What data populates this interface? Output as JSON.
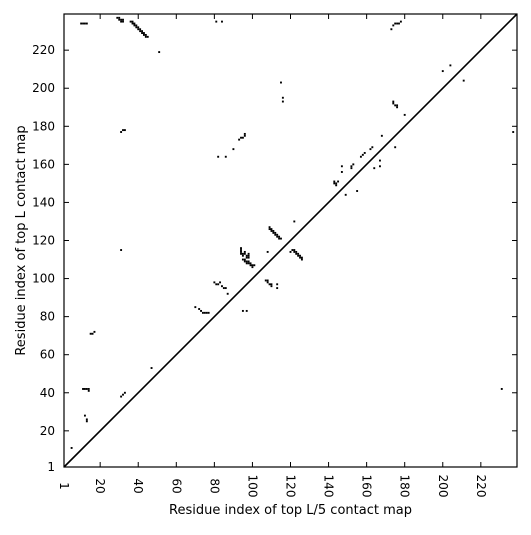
{
  "chart_data": {
    "type": "scatter",
    "title": "",
    "xlabel": "Residue index of top L/5 contact map",
    "ylabel": "Residue index of top L contact map",
    "xlim": [
      1,
      239
    ],
    "ylim": [
      1,
      239
    ],
    "grid": false,
    "diagonal": true,
    "x_ticks": [
      {
        "value": 1,
        "label": "1"
      },
      {
        "value": 20,
        "label": "20"
      },
      {
        "value": 40,
        "label": "40"
      },
      {
        "value": 60,
        "label": "60"
      },
      {
        "value": 80,
        "label": "80"
      },
      {
        "value": 100,
        "label": "100"
      },
      {
        "value": 120,
        "label": "120"
      },
      {
        "value": 140,
        "label": "140"
      },
      {
        "value": 160,
        "label": "160"
      },
      {
        "value": 180,
        "label": "180"
      },
      {
        "value": 200,
        "label": "200"
      },
      {
        "value": 220,
        "label": "220"
      }
    ],
    "y_ticks": [
      {
        "value": 1,
        "label": "1"
      },
      {
        "value": 20,
        "label": "20"
      },
      {
        "value": 40,
        "label": "40"
      },
      {
        "value": 60,
        "label": "60"
      },
      {
        "value": 80,
        "label": "80"
      },
      {
        "value": 100,
        "label": "100"
      },
      {
        "value": 120,
        "label": "120"
      },
      {
        "value": 140,
        "label": "140"
      },
      {
        "value": 160,
        "label": "160"
      },
      {
        "value": 180,
        "label": "180"
      },
      {
        "value": 200,
        "label": "200"
      },
      {
        "value": 220,
        "label": "220"
      }
    ],
    "series": [
      {
        "color": "#000000",
        "points": [
          [
            10,
            234
          ],
          [
            11,
            234
          ],
          [
            12,
            234
          ],
          [
            13,
            234
          ],
          [
            29,
            237
          ],
          [
            30,
            237
          ],
          [
            30,
            236
          ],
          [
            31,
            236
          ],
          [
            31,
            235
          ],
          [
            32,
            235
          ],
          [
            32,
            236
          ],
          [
            36,
            235
          ],
          [
            37,
            235
          ],
          [
            37,
            234
          ],
          [
            38,
            234
          ],
          [
            38,
            233
          ],
          [
            39,
            233
          ],
          [
            39,
            232
          ],
          [
            40,
            232
          ],
          [
            40,
            231
          ],
          [
            41,
            231
          ],
          [
            41,
            230
          ],
          [
            42,
            230
          ],
          [
            42,
            229
          ],
          [
            43,
            229
          ],
          [
            43,
            228
          ],
          [
            44,
            228
          ],
          [
            44,
            227
          ],
          [
            45,
            227
          ],
          [
            51,
            219
          ],
          [
            81,
            235
          ],
          [
            84,
            235
          ],
          [
            31,
            177
          ],
          [
            32,
            178
          ],
          [
            33,
            178
          ],
          [
            31,
            115
          ],
          [
            11,
            42
          ],
          [
            12,
            42
          ],
          [
            13,
            42
          ],
          [
            14,
            42
          ],
          [
            14,
            41
          ],
          [
            12,
            28
          ],
          [
            13,
            26
          ],
          [
            13,
            25
          ],
          [
            15,
            71
          ],
          [
            16,
            71
          ],
          [
            17,
            72
          ],
          [
            31,
            38
          ],
          [
            32,
            39
          ],
          [
            33,
            40
          ],
          [
            47,
            53
          ],
          [
            5,
            11
          ],
          [
            70,
            85
          ],
          [
            72,
            84
          ],
          [
            73,
            83
          ],
          [
            74,
            82
          ],
          [
            75,
            82
          ],
          [
            76,
            82
          ],
          [
            77,
            82
          ],
          [
            80,
            98
          ],
          [
            81,
            97
          ],
          [
            82,
            97
          ],
          [
            83,
            98
          ],
          [
            84,
            96
          ],
          [
            85,
            95
          ],
          [
            86,
            95
          ],
          [
            87,
            92
          ],
          [
            82,
            164
          ],
          [
            86,
            164
          ],
          [
            90,
            168
          ],
          [
            93,
            173
          ],
          [
            94,
            174
          ],
          [
            95,
            174
          ],
          [
            96,
            175
          ],
          [
            96,
            176
          ],
          [
            95,
            83
          ],
          [
            97,
            83
          ],
          [
            94,
            116
          ],
          [
            94,
            115
          ],
          [
            94,
            114
          ],
          [
            94,
            113
          ],
          [
            95,
            113
          ],
          [
            95,
            112
          ],
          [
            96,
            114
          ],
          [
            96,
            113
          ],
          [
            97,
            112
          ],
          [
            97,
            111
          ],
          [
            98,
            113
          ],
          [
            98,
            112
          ],
          [
            98,
            111
          ],
          [
            95,
            110
          ],
          [
            96,
            110
          ],
          [
            96,
            109
          ],
          [
            97,
            109
          ],
          [
            97,
            108
          ],
          [
            98,
            108
          ],
          [
            98,
            109
          ],
          [
            99,
            107
          ],
          [
            99,
            108
          ],
          [
            100,
            107
          ],
          [
            100,
            106
          ],
          [
            101,
            107
          ],
          [
            108,
            114
          ],
          [
            107,
            99
          ],
          [
            108,
            99
          ],
          [
            108,
            98
          ],
          [
            109,
            97
          ],
          [
            110,
            97
          ],
          [
            110,
            96
          ],
          [
            113,
            95
          ],
          [
            113,
            97
          ],
          [
            109,
            127
          ],
          [
            109,
            126
          ],
          [
            110,
            126
          ],
          [
            110,
            125
          ],
          [
            111,
            125
          ],
          [
            111,
            124
          ],
          [
            112,
            124
          ],
          [
            112,
            123
          ],
          [
            113,
            123
          ],
          [
            113,
            122
          ],
          [
            114,
            122
          ],
          [
            114,
            121
          ],
          [
            115,
            121
          ],
          [
            115,
            203
          ],
          [
            116,
            195
          ],
          [
            116,
            193
          ],
          [
            120,
            114
          ],
          [
            121,
            115
          ],
          [
            122,
            115
          ],
          [
            122,
            114
          ],
          [
            123,
            114
          ],
          [
            123,
            113
          ],
          [
            124,
            113
          ],
          [
            124,
            112
          ],
          [
            125,
            112
          ],
          [
            125,
            111
          ],
          [
            126,
            111
          ],
          [
            126,
            110
          ],
          [
            122,
            130
          ],
          [
            143,
            151
          ],
          [
            143,
            150
          ],
          [
            144,
            150
          ],
          [
            144,
            149
          ],
          [
            145,
            151
          ],
          [
            147,
            156
          ],
          [
            147,
            159
          ],
          [
            149,
            144
          ],
          [
            152,
            158
          ],
          [
            152,
            159
          ],
          [
            153,
            160
          ],
          [
            155,
            146
          ],
          [
            157,
            164
          ],
          [
            158,
            165
          ],
          [
            159,
            166
          ],
          [
            162,
            168
          ],
          [
            163,
            169
          ],
          [
            164,
            158
          ],
          [
            167,
            159
          ],
          [
            167,
            162
          ],
          [
            168,
            175
          ],
          [
            173,
            231
          ],
          [
            174,
            233
          ],
          [
            175,
            234
          ],
          [
            176,
            234
          ],
          [
            177,
            234
          ],
          [
            178,
            235
          ],
          [
            174,
            193
          ],
          [
            174,
            192
          ],
          [
            175,
            191
          ],
          [
            176,
            191
          ],
          [
            176,
            190
          ],
          [
            175,
            169
          ],
          [
            180,
            186
          ],
          [
            200,
            209
          ],
          [
            204,
            212
          ],
          [
            211,
            204
          ],
          [
            231,
            42
          ],
          [
            237,
            177
          ]
        ]
      }
    ]
  }
}
